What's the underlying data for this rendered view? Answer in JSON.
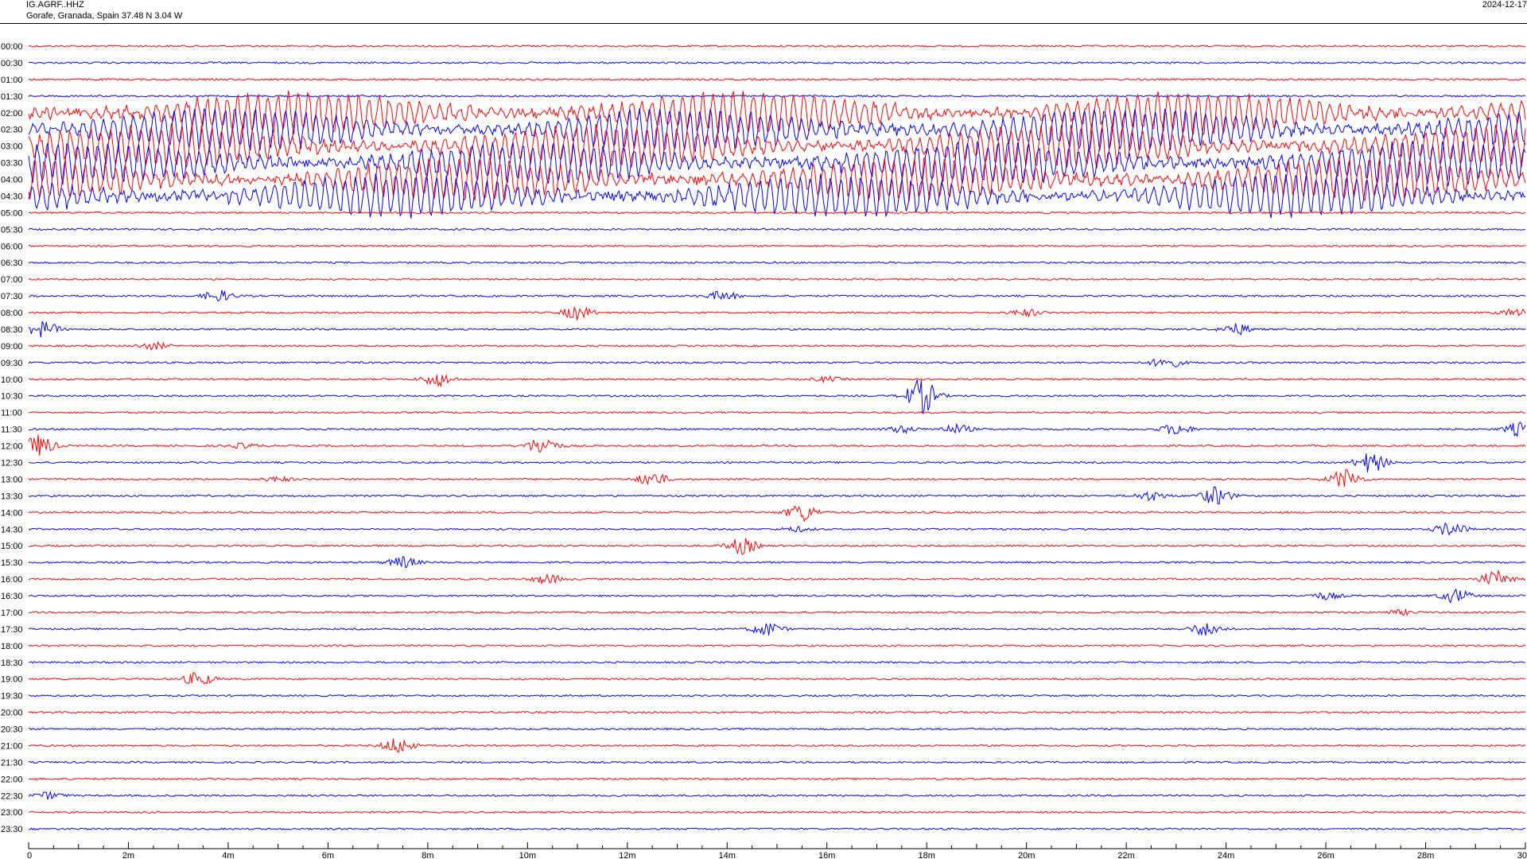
{
  "header": {
    "station": "IG.AGRF..HHZ",
    "location": "Gorafe, Granada, Spain  37.48 N 3.04 W",
    "date": "2024-12-17"
  },
  "colors": {
    "red": "#ff0000",
    "blue": "#0000ff",
    "axis": "#000000"
  },
  "chart_data": {
    "type": "line",
    "chart_kind": "helicorder",
    "title": "",
    "xlabel": "",
    "ylabel": "",
    "xlim": [
      0,
      30
    ],
    "x_unit": "minutes",
    "x_ticks": [
      0,
      2,
      4,
      6,
      8,
      10,
      12,
      14,
      16,
      18,
      20,
      22,
      24,
      26,
      28,
      30
    ],
    "x_tick_labels": [
      "0",
      "2m",
      "4m",
      "6m",
      "8m",
      "10m",
      "12m",
      "14m",
      "16m",
      "18m",
      "20m",
      "22m",
      "24m",
      "26m",
      "28m",
      "30"
    ],
    "grid": false,
    "rows": [
      "00:00",
      "00:30",
      "01:00",
      "01:30",
      "02:00",
      "02:30",
      "03:00",
      "03:30",
      "04:00",
      "04:30",
      "05:00",
      "05:30",
      "06:00",
      "06:30",
      "07:00",
      "07:30",
      "08:00",
      "08:30",
      "09:00",
      "09:30",
      "10:00",
      "10:30",
      "11:00",
      "11:30",
      "12:00",
      "12:30",
      "13:00",
      "13:30",
      "14:00",
      "14:30",
      "15:00",
      "15:30",
      "16:00",
      "16:30",
      "17:00",
      "17:30",
      "18:00",
      "18:30",
      "19:00",
      "19:30",
      "20:00",
      "20:30",
      "21:00",
      "21:30",
      "22:00",
      "22:30",
      "23:00",
      "23:30"
    ],
    "row_colors": [
      "red",
      "blue"
    ],
    "strong_motion": {
      "start_row": "02:00",
      "end_row": "04:30",
      "start_minute": 0,
      "end_minute": 30
    },
    "events": [
      {
        "row": "07:30",
        "minute": 3.8,
        "amplitude": 0.5
      },
      {
        "row": "07:30",
        "minute": 13.9,
        "amplitude": 0.4
      },
      {
        "row": "08:00",
        "minute": 11.0,
        "amplitude": 0.6
      },
      {
        "row": "08:00",
        "minute": 20.0,
        "amplitude": 0.3
      },
      {
        "row": "08:00",
        "minute": 29.8,
        "amplitude": 0.3
      },
      {
        "row": "08:30",
        "minute": 0.3,
        "amplitude": 0.7
      },
      {
        "row": "08:30",
        "minute": 24.2,
        "amplitude": 0.5
      },
      {
        "row": "09:00",
        "minute": 2.5,
        "amplitude": 0.3
      },
      {
        "row": "09:30",
        "minute": 22.8,
        "amplitude": 0.5
      },
      {
        "row": "10:00",
        "minute": 8.2,
        "amplitude": 0.6
      },
      {
        "row": "10:00",
        "minute": 16.0,
        "amplitude": 0.2
      },
      {
        "row": "10:30",
        "minute": 17.9,
        "amplitude": 1.6
      },
      {
        "row": "11:30",
        "minute": 17.5,
        "amplitude": 0.3
      },
      {
        "row": "11:30",
        "minute": 18.6,
        "amplitude": 0.4
      },
      {
        "row": "11:30",
        "minute": 23.0,
        "amplitude": 0.5
      },
      {
        "row": "11:30",
        "minute": 29.9,
        "amplitude": 0.6
      },
      {
        "row": "12:00",
        "minute": 0.2,
        "amplitude": 1.0
      },
      {
        "row": "12:00",
        "minute": 10.3,
        "amplitude": 0.8
      },
      {
        "row": "12:00",
        "minute": 4.3,
        "amplitude": 0.2
      },
      {
        "row": "12:30",
        "minute": 26.9,
        "amplitude": 0.9
      },
      {
        "row": "13:00",
        "minute": 12.5,
        "amplitude": 0.6
      },
      {
        "row": "13:00",
        "minute": 26.4,
        "amplitude": 0.9
      },
      {
        "row": "13:00",
        "minute": 5.0,
        "amplitude": 0.2
      },
      {
        "row": "13:30",
        "minute": 23.8,
        "amplitude": 0.8
      },
      {
        "row": "13:30",
        "minute": 22.5,
        "amplitude": 0.4
      },
      {
        "row": "14:00",
        "minute": 15.5,
        "amplitude": 0.8
      },
      {
        "row": "14:30",
        "minute": 28.5,
        "amplitude": 0.6
      },
      {
        "row": "14:30",
        "minute": 15.4,
        "amplitude": 0.2
      },
      {
        "row": "15:00",
        "minute": 14.3,
        "amplitude": 0.7
      },
      {
        "row": "15:30",
        "minute": 7.5,
        "amplitude": 0.5
      },
      {
        "row": "16:00",
        "minute": 10.4,
        "amplitude": 0.4
      },
      {
        "row": "16:00",
        "minute": 29.4,
        "amplitude": 0.7
      },
      {
        "row": "16:30",
        "minute": 26.0,
        "amplitude": 0.3
      },
      {
        "row": "16:30",
        "minute": 28.6,
        "amplitude": 0.6
      },
      {
        "row": "17:00",
        "minute": 27.5,
        "amplitude": 0.2
      },
      {
        "row": "17:30",
        "minute": 14.8,
        "amplitude": 0.6
      },
      {
        "row": "17:30",
        "minute": 23.6,
        "amplitude": 0.6
      },
      {
        "row": "19:00",
        "minute": 3.4,
        "amplitude": 0.6
      },
      {
        "row": "21:00",
        "minute": 7.4,
        "amplitude": 0.7
      },
      {
        "row": "22:30",
        "minute": 0.4,
        "amplitude": 0.3
      }
    ]
  }
}
